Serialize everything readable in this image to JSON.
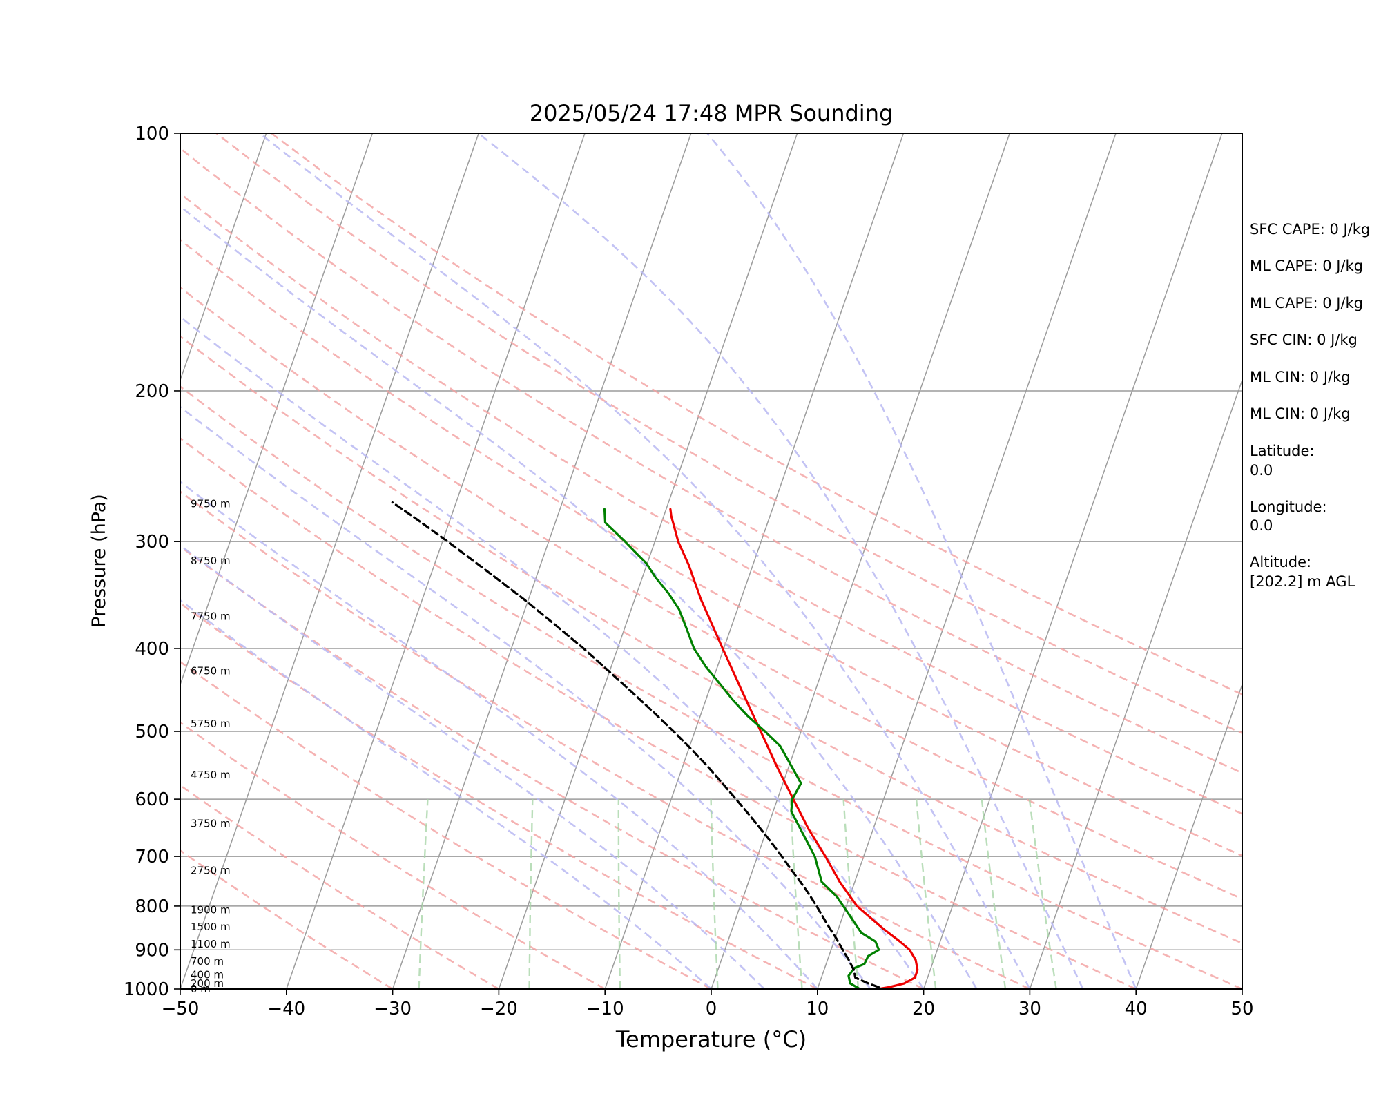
{
  "chart_data": {
    "type": "line",
    "title": "2025/05/24 17:48 MPR Sounding",
    "xlabel": "Temperature (°C)",
    "ylabel": "Pressure (hPa)",
    "xlim": [
      -50,
      50
    ],
    "ylim": [
      1000,
      100
    ],
    "y_scale": "log",
    "skew_deg_per_decade": 2.81,
    "x_ticks": [
      "−50",
      "−40",
      "−30",
      "−20",
      "−10",
      "0",
      "10",
      "20",
      "30",
      "40",
      "50"
    ],
    "x_tick_values": [
      -50,
      -40,
      -30,
      -20,
      -10,
      0,
      10,
      20,
      30,
      40,
      50
    ],
    "y_ticks": [
      "100",
      "200",
      "300",
      "400",
      "500",
      "600",
      "700",
      "800",
      "900",
      "1000"
    ],
    "y_tick_values": [
      100,
      200,
      300,
      400,
      500,
      600,
      700,
      800,
      900,
      1000
    ],
    "grid": true,
    "isotherms": [
      -150,
      -140,
      -130,
      -120,
      -110,
      -100,
      -90,
      -80,
      -70,
      -60,
      -50,
      -40,
      -30,
      -20,
      -10,
      0,
      10,
      20,
      30,
      40,
      50
    ],
    "dry_adiabats_theta_C": [
      -30,
      -20,
      -10,
      0,
      10,
      20,
      30,
      40,
      50,
      60,
      70,
      80,
      90,
      100,
      110,
      120
    ],
    "moist_adiabats_T_C": [
      0,
      5,
      10,
      15,
      20,
      25,
      30,
      35,
      40
    ],
    "mixing_ratio_lines_gkg": [
      0.4,
      1,
      2,
      4,
      7,
      10,
      16,
      24,
      32
    ],
    "series": [
      {
        "name": "Temperature",
        "color": "#ee0000",
        "style": "solid",
        "p": [
          1000,
          995,
          985,
          970,
          950,
          925,
          900,
          880,
          850,
          800,
          750,
          700,
          650,
          600,
          550,
          500,
          450,
          400,
          350,
          320,
          300,
          280,
          275
        ],
        "t": [
          15.7,
          16.7,
          18.0,
          18.8,
          18.8,
          18.3,
          17.4,
          16.2,
          14.2,
          11.0,
          8.6,
          6.4,
          3.9,
          1.5,
          -1.1,
          -3.8,
          -6.8,
          -10.1,
          -13.8,
          -16.0,
          -17.8,
          -19.3,
          -19.6
        ]
      },
      {
        "name": "Dewpoint",
        "color": "#008000",
        "style": "solid",
        "p": [
          1000,
          985,
          965,
          945,
          935,
          915,
          900,
          880,
          860,
          820,
          780,
          750,
          700,
          660,
          620,
          600,
          575,
          550,
          520,
          500,
          480,
          460,
          440,
          420,
          400,
          380,
          360,
          345,
          330,
          318,
          310,
          300,
          285,
          275
        ],
        "t": [
          14.0,
          12.9,
          12.5,
          12.8,
          13.6,
          13.7,
          14.5,
          13.9,
          12.3,
          10.6,
          8.8,
          6.9,
          5.4,
          3.6,
          1.7,
          1.4,
          1.7,
          0.3,
          -1.5,
          -3.4,
          -5.5,
          -7.4,
          -9.2,
          -11.1,
          -12.8,
          -14.1,
          -15.5,
          -17.0,
          -18.8,
          -20.1,
          -21.3,
          -22.8,
          -25.3,
          -25.8
        ]
      },
      {
        "name": "Parcel",
        "color": "#000000",
        "style": "dashed",
        "p": [
          995,
          985,
          970,
          950,
          925,
          900,
          875,
          850,
          825,
          800,
          775,
          750,
          725,
          700,
          675,
          650,
          625,
          600,
          575,
          550,
          525,
          500,
          475,
          450,
          425,
          400,
          375,
          350,
          325,
          300,
          280,
          270
        ],
        "t": [
          15.7,
          14.6,
          13.2,
          12.8,
          12.0,
          11.1,
          10.2,
          9.2,
          8.2,
          7.2,
          6.1,
          4.9,
          3.6,
          2.3,
          0.9,
          -0.6,
          -2.2,
          -3.9,
          -5.7,
          -7.6,
          -9.7,
          -12.0,
          -14.5,
          -17.2,
          -20.1,
          -23.2,
          -26.7,
          -30.5,
          -34.8,
          -39.5,
          -43.7,
          -46.0
        ]
      }
    ],
    "height_labels": [
      {
        "p": 1000,
        "label": "0 m"
      },
      {
        "p": 985,
        "label": "200 m"
      },
      {
        "p": 963,
        "label": "400 m"
      },
      {
        "p": 928,
        "label": "700 m"
      },
      {
        "p": 886,
        "label": "1100 m"
      },
      {
        "p": 846,
        "label": "1500 m"
      },
      {
        "p": 808,
        "label": "1900 m"
      },
      {
        "p": 727,
        "label": "2750 m"
      },
      {
        "p": 641,
        "label": "3750 m"
      },
      {
        "p": 562,
        "label": "4750 m"
      },
      {
        "p": 490,
        "label": "5750 m"
      },
      {
        "p": 425,
        "label": "6750 m"
      },
      {
        "p": 367,
        "label": "7750 m"
      },
      {
        "p": 316,
        "label": "8750 m"
      },
      {
        "p": 271,
        "label": "9750 m"
      }
    ]
  },
  "info": {
    "sfc_cape": "SFC CAPE: 0 J/kg",
    "ml_cape_1": "ML CAPE: 0 J/kg",
    "ml_cape_2": "ML CAPE: 0 J/kg",
    "sfc_cin": "SFC CIN: 0 J/kg",
    "ml_cin_1": "ML CIN: 0 J/kg",
    "ml_cin_2": "ML CIN: 0 J/kg",
    "latitude_label": "Latitude:",
    "latitude_value": "0.0",
    "longitude_label": "Longitude:",
    "longitude_value": "0.0",
    "altitude_label": "Altitude:",
    "altitude_value": "[202.2] m AGL"
  }
}
